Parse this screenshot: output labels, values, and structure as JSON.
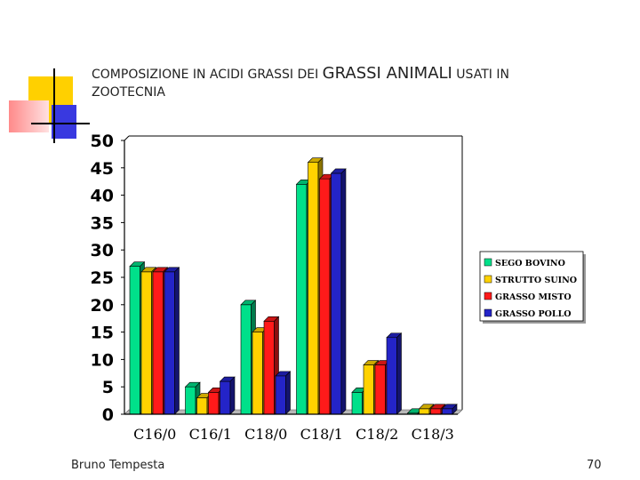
{
  "slide": {
    "title_part1": "COMPOSIZIONE IN ACIDI GRASSI DEI ",
    "title_part2": "GRASSI ANIMALI",
    "title_part3": " USATI IN",
    "title_line2": "ZOOTECNIA",
    "author": "Bruno Tempesta",
    "page_number": "70"
  },
  "chart_data": {
    "type": "bar",
    "categories": [
      "C16/0",
      "C16/1",
      "C18/0",
      "C18/1",
      "C18/2",
      "C18/3"
    ],
    "series": [
      {
        "name": "SEGO BOVINO",
        "color": "#00e08a",
        "values": [
          27,
          5,
          20,
          42,
          4,
          0.2
        ]
      },
      {
        "name": "STRUTTO SUINO",
        "color": "#ffd200",
        "values": [
          26,
          3,
          15,
          46,
          9,
          1
        ]
      },
      {
        "name": "GRASSO MISTO",
        "color": "#ff1a1a",
        "values": [
          26,
          4,
          17,
          43,
          9,
          1
        ]
      },
      {
        "name": "GRASSO POLLO",
        "color": "#2424c8",
        "values": [
          26,
          6,
          7,
          44,
          14,
          1
        ]
      }
    ],
    "yticks": [
      0,
      5,
      10,
      15,
      20,
      25,
      30,
      35,
      40,
      45,
      50
    ],
    "ylim": [
      0,
      50
    ],
    "grid": false,
    "legend_position": "right"
  }
}
